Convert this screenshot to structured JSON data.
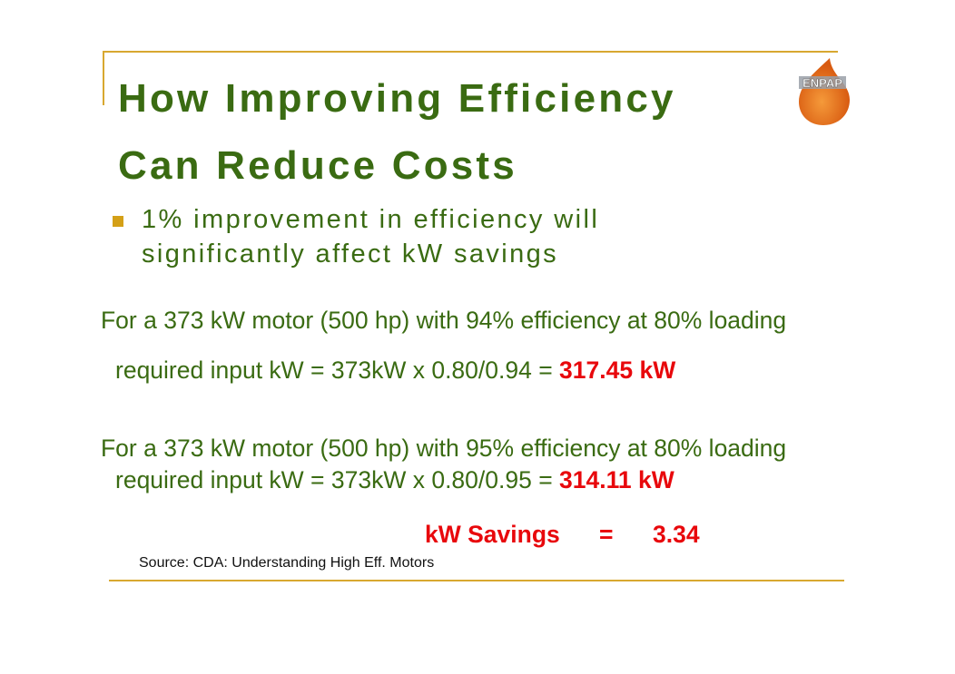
{
  "title": {
    "line1": "How Improving Efficiency",
    "line2": "Can Reduce Costs"
  },
  "logo": {
    "text": "ENPAP",
    "color": "#e8701a"
  },
  "bullet": {
    "line1": "1% improvement in efficiency will",
    "line2": "significantly affect kW savings"
  },
  "example1": {
    "line1": "For a 373 kW motor (500 hp) with 94% efficiency at 80% loading",
    "line2_prefix": "required input  kW = 373kW x 0.80/0.94 = ",
    "result": "317.45 kW"
  },
  "example2": {
    "line1": "For a 373 kW motor (500 hp) with 95% efficiency at 80% loading",
    "line2_prefix": "required input  kW = 373kW x 0.80/0.95 = ",
    "result": "314.11 kW"
  },
  "savings": {
    "label": "kW Savings",
    "equals": "=",
    "value": "3.34"
  },
  "source": "Source: CDA: Understanding High Eff. Motors",
  "colors": {
    "green": "#3a6b12",
    "red": "#e8080c",
    "gold": "#d8a830"
  }
}
